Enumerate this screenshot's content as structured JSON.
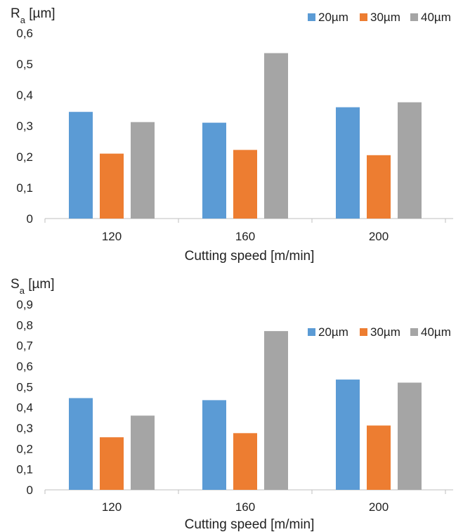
{
  "chart_data": [
    {
      "type": "bar",
      "ylabel_main": "R",
      "ylabel_sub": "a",
      "ylabel_unit": " [µm]",
      "xlabel": "Cutting speed [m/min]",
      "categories": [
        "120",
        "160",
        "200"
      ],
      "ylim": [
        0,
        0.6
      ],
      "yticks": [
        "0",
        "0,1",
        "0,2",
        "0,3",
        "0,4",
        "0,5",
        "0,6"
      ],
      "legend_position": "top-right",
      "series": [
        {
          "name": "20µm",
          "color": "#5B9BD5",
          "values": [
            0.345,
            0.31,
            0.36
          ]
        },
        {
          "name": "30µm",
          "color": "#ED7D31",
          "values": [
            0.21,
            0.222,
            0.205
          ]
        },
        {
          "name": "40µm",
          "color": "#A5A5A5",
          "values": [
            0.312,
            0.535,
            0.376
          ]
        }
      ]
    },
    {
      "type": "bar",
      "ylabel_main": "S",
      "ylabel_sub": "a",
      "ylabel_unit": " [µm]",
      "xlabel": "Cutting speed [m/min]",
      "categories": [
        "120",
        "160",
        "200"
      ],
      "ylim": [
        0,
        0.9
      ],
      "yticks": [
        "0",
        "0,1",
        "0,2",
        "0,3",
        "0,4",
        "0,5",
        "0,6",
        "0,7",
        "0,8",
        "0,9"
      ],
      "legend_position": "top-right",
      "series": [
        {
          "name": "20µm",
          "color": "#5B9BD5",
          "values": [
            0.445,
            0.435,
            0.535
          ]
        },
        {
          "name": "30µm",
          "color": "#ED7D31",
          "values": [
            0.255,
            0.275,
            0.312
          ]
        },
        {
          "name": "40µm",
          "color": "#A5A5A5",
          "values": [
            0.36,
            0.77,
            0.52
          ]
        }
      ]
    }
  ]
}
